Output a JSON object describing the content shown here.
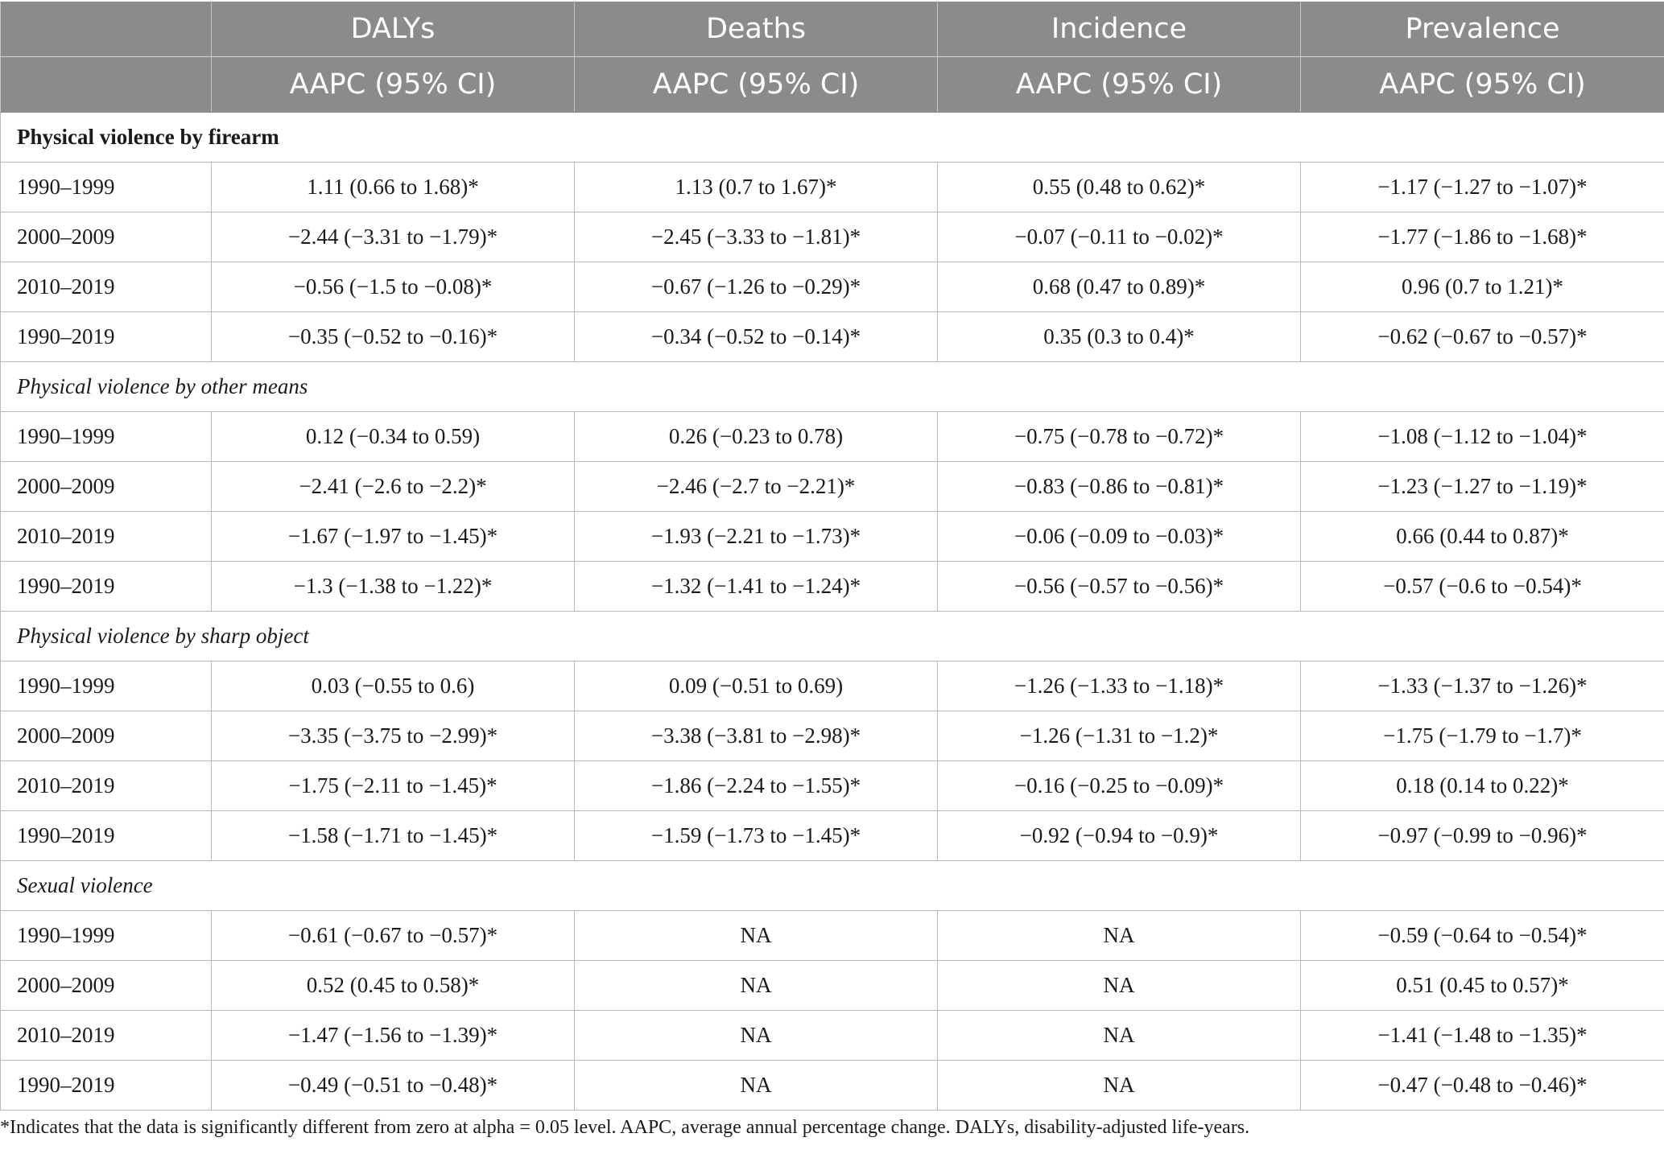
{
  "header": {
    "columns": [
      "DALYs",
      "Deaths",
      "Incidence",
      "Prevalence"
    ],
    "subheader": [
      "AAPC (95% CI)",
      "AAPC (95% CI)",
      "AAPC (95% CI)",
      "AAPC (95% CI)"
    ]
  },
  "sections": [
    {
      "title": "Physical violence by firearm",
      "style": "bold",
      "rows": [
        {
          "period": "1990–1999",
          "dalys": "1.11 (0.66 to 1.68)*",
          "deaths": "1.13 (0.7 to 1.67)*",
          "incidence": "0.55 (0.48 to 0.62)*",
          "prevalence": "−1.17 (−1.27 to −1.07)*"
        },
        {
          "period": "2000–2009",
          "dalys": "−2.44 (−3.31 to −1.79)*",
          "deaths": "−2.45 (−3.33 to −1.81)*",
          "incidence": "−0.07 (−0.11 to −0.02)*",
          "prevalence": "−1.77 (−1.86 to −1.68)*"
        },
        {
          "period": "2010–2019",
          "dalys": "−0.56 (−1.5 to −0.08)*",
          "deaths": "−0.67 (−1.26 to −0.29)*",
          "incidence": "0.68 (0.47 to 0.89)*",
          "prevalence": "0.96 (0.7 to 1.21)*"
        },
        {
          "period": "1990–2019",
          "dalys": "−0.35 (−0.52 to −0.16)*",
          "deaths": "−0.34 (−0.52 to −0.14)*",
          "incidence": "0.35 (0.3 to 0.4)*",
          "prevalence": "−0.62 (−0.67 to −0.57)*"
        }
      ]
    },
    {
      "title": "Physical violence by other means",
      "style": "italic",
      "rows": [
        {
          "period": "1990–1999",
          "dalys": "0.12 (−0.34 to 0.59)",
          "deaths": "0.26 (−0.23 to 0.78)",
          "incidence": "−0.75 (−0.78 to −0.72)*",
          "prevalence": "−1.08 (−1.12 to −1.04)*"
        },
        {
          "period": "2000–2009",
          "dalys": "−2.41 (−2.6 to −2.2)*",
          "deaths": "−2.46 (−2.7 to −2.21)*",
          "incidence": "−0.83 (−0.86 to −0.81)*",
          "prevalence": "−1.23 (−1.27 to −1.19)*"
        },
        {
          "period": "2010–2019",
          "dalys": "−1.67 (−1.97 to −1.45)*",
          "deaths": "−1.93 (−2.21 to −1.73)*",
          "incidence": "−0.06 (−0.09 to −0.03)*",
          "prevalence": "0.66 (0.44 to 0.87)*"
        },
        {
          "period": "1990–2019",
          "dalys": "−1.3 (−1.38 to −1.22)*",
          "deaths": "−1.32 (−1.41 to −1.24)*",
          "incidence": "−0.56 (−0.57 to −0.56)*",
          "prevalence": "−0.57 (−0.6 to −0.54)*"
        }
      ]
    },
    {
      "title": "Physical violence by sharp object",
      "style": "italic",
      "rows": [
        {
          "period": "1990–1999",
          "dalys": "0.03 (−0.55 to 0.6)",
          "deaths": "0.09 (−0.51 to 0.69)",
          "incidence": "−1.26 (−1.33 to −1.18)*",
          "prevalence": "−1.33 (−1.37 to −1.26)*"
        },
        {
          "period": "2000–2009",
          "dalys": "−3.35 (−3.75 to −2.99)*",
          "deaths": "−3.38 (−3.81 to −2.98)*",
          "incidence": "−1.26 (−1.31 to −1.2)*",
          "prevalence": "−1.75 (−1.79 to −1.7)*"
        },
        {
          "period": "2010–2019",
          "dalys": "−1.75 (−2.11 to −1.45)*",
          "deaths": "−1.86 (−2.24 to −1.55)*",
          "incidence": "−0.16 (−0.25 to −0.09)*",
          "prevalence": "0.18 (0.14 to 0.22)*"
        },
        {
          "period": "1990–2019",
          "dalys": "−1.58 (−1.71 to −1.45)*",
          "deaths": "−1.59 (−1.73 to −1.45)*",
          "incidence": "−0.92 (−0.94 to −0.9)*",
          "prevalence": "−0.97 (−0.99 to −0.96)*"
        }
      ]
    },
    {
      "title": "Sexual violence",
      "style": "italic",
      "rows": [
        {
          "period": "1990–1999",
          "dalys": "−0.61 (−0.67 to −0.57)*",
          "deaths": "NA",
          "incidence": "NA",
          "prevalence": "−0.59 (−0.64 to −0.54)*"
        },
        {
          "period": "2000–2009",
          "dalys": "0.52 (0.45 to 0.58)*",
          "deaths": "NA",
          "incidence": "NA",
          "prevalence": "0.51 (0.45 to 0.57)*"
        },
        {
          "period": "2010–2019",
          "dalys": "−1.47 (−1.56 to −1.39)*",
          "deaths": "NA",
          "incidence": "NA",
          "prevalence": "−1.41 (−1.48 to −1.35)*"
        },
        {
          "period": "1990–2019",
          "dalys": "−0.49 (−0.51 to −0.48)*",
          "deaths": "NA",
          "incidence": "NA",
          "prevalence": "−0.47 (−0.48 to −0.46)*"
        }
      ]
    }
  ],
  "footnote": "*Indicates that the data is significantly different from zero at alpha = 0.05 level. AAPC, average annual percentage change. DALYs, disability-adjusted life-years.",
  "colors": {
    "header_bg": "#8a8c8b",
    "header_text": "#ffffff",
    "grid": "#b9b9b9"
  }
}
